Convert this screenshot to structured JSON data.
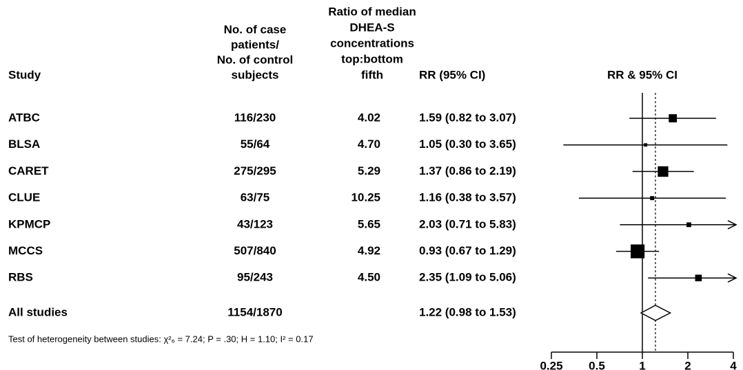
{
  "chart_data": {
    "type": "forest",
    "headers": {
      "study": "Study",
      "cases": [
        "No. of case",
        "patients/",
        "No. of control",
        "subjects"
      ],
      "ratio": [
        "Ratio of median",
        "DHEA-S",
        "concentrations",
        "top:bottom",
        "fifth"
      ],
      "rr": "RR (95% CI)",
      "plot": "RR & 95% CI"
    },
    "categories": [
      "ATBC",
      "BLSA",
      "CARET",
      "CLUE",
      "KPMCP",
      "MCCS",
      "RBS"
    ],
    "cases": [
      "116/230",
      "55/64",
      "275/295",
      "63/75",
      "43/123",
      "507/840",
      "95/243"
    ],
    "ratios": [
      "4.02",
      "4.70",
      "5.29",
      "10.25",
      "5.65",
      "4.92",
      "4.50"
    ],
    "values": [
      1.59,
      1.05,
      1.37,
      1.16,
      2.03,
      0.93,
      2.35
    ],
    "lower": [
      0.82,
      0.3,
      0.86,
      0.38,
      0.71,
      0.67,
      1.09
    ],
    "upper": [
      3.07,
      3.65,
      2.19,
      3.57,
      5.83,
      1.29,
      5.06
    ],
    "value_labels": [
      "1.59 (0.82 to 3.07)",
      "1.05 (0.30 to 3.65)",
      "1.37 (0.86 to 2.19)",
      "1.16 (0.38 to 3.57)",
      "2.03 (0.71 to 5.83)",
      "0.93 (0.67 to 1.29)",
      "2.35 (1.09 to 5.06)"
    ],
    "weights": [
      12,
      2,
      20,
      3,
      4,
      35,
      8
    ],
    "pooled": {
      "label": "All studies",
      "cases": "1154/1870",
      "value": 1.22,
      "lower": 0.98,
      "upper": 1.53,
      "value_label": "1.22 (0.98 to 1.53)"
    },
    "note": "Test of heterogeneity between studies: χ²₆ = 7.24; P = .30; H = 1.10; I² = 0.17",
    "log_scale": true,
    "xlim": [
      0.25,
      4
    ],
    "xticks": [
      0.25,
      0.5,
      1,
      2,
      4
    ],
    "reference": 1,
    "color": "#000000"
  }
}
